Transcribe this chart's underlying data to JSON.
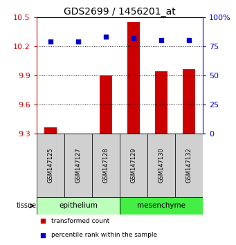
{
  "title": "GDS2699 / 1456201_at",
  "samples": [
    "GSM147125",
    "GSM147127",
    "GSM147128",
    "GSM147129",
    "GSM147130",
    "GSM147132"
  ],
  "red_values": [
    9.36,
    9.3,
    9.9,
    10.45,
    9.94,
    9.96
  ],
  "blue_values": [
    79,
    79,
    83,
    82,
    80,
    80
  ],
  "y_min": 9.3,
  "y_max": 10.5,
  "y_ticks": [
    9.3,
    9.6,
    9.9,
    10.2,
    10.5
  ],
  "y_right_ticks": [
    0,
    25,
    50,
    75,
    100
  ],
  "groups": [
    {
      "label": "epithelium",
      "start": 0,
      "end": 3,
      "color": "#bbffbb"
    },
    {
      "label": "mesenchyme",
      "start": 3,
      "end": 6,
      "color": "#44ee44"
    }
  ],
  "bar_color": "#cc0000",
  "dot_color": "#0000cc",
  "bar_width": 0.45,
  "tissue_label": "tissue",
  "legend_red": "transformed count",
  "legend_blue": "percentile rank within the sample",
  "left_axis_color": "#cc0000",
  "right_axis_color": "#0000cc",
  "background_color": "#ffffff",
  "grid_color": "#000000"
}
